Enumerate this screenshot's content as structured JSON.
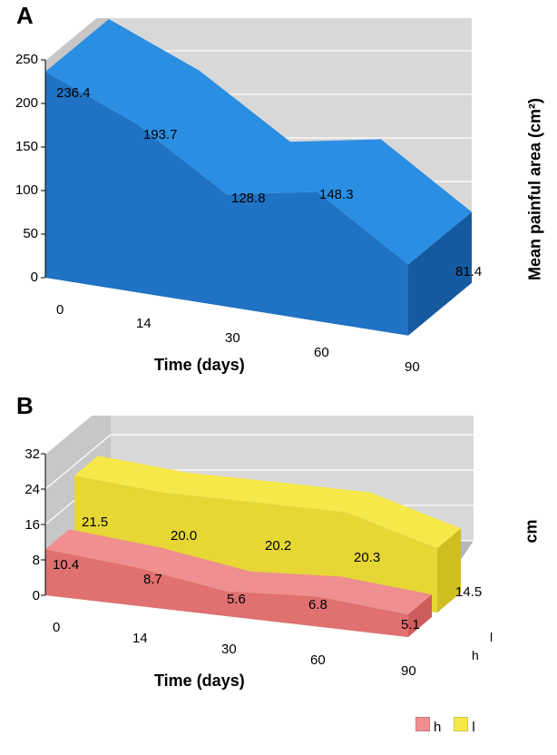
{
  "panelA": {
    "label": "A",
    "type": "area-3d",
    "x": [
      0,
      14,
      30,
      60,
      90
    ],
    "values": [
      236.4,
      193.7,
      128.8,
      148.3,
      81.4
    ],
    "value_labels": [
      "236.4",
      "193.7",
      "128.8",
      "148.3",
      "81.4"
    ],
    "x_tick_labels": [
      "0",
      "14",
      "30",
      "60",
      "90"
    ],
    "y_tick_labels": [
      "0",
      "50",
      "100",
      "150",
      "200",
      "250"
    ],
    "ylim": [
      0,
      250
    ],
    "x_label": "Time (days)",
    "y_label_right": "Mean painful area (cm²)",
    "colors": {
      "area_top": "#2a8fe3",
      "area_front": "#1f72c4",
      "area_side_dark": "#155a9e",
      "wall_back": "#d8d8d8",
      "wall_side": "#c7c7c7",
      "floor": "#b6b6b6",
      "grid": "#ffffff",
      "text": "#000000"
    },
    "font": {
      "family": "Arial",
      "tick_pt": 15,
      "label_pt": 18,
      "panel_pt": 26,
      "data_pt": 15
    }
  },
  "panelB": {
    "label": "B",
    "type": "area-3d-stacked-depth",
    "x": [
      0,
      14,
      30,
      60,
      90
    ],
    "x_tick_labels": [
      "0",
      "14",
      "30",
      "60",
      "90"
    ],
    "y_tick_labels": [
      "0",
      "8",
      "16",
      "24",
      "32"
    ],
    "ylim": [
      0,
      32
    ],
    "x_label": "Time (days)",
    "y_label_right": "cm",
    "series": [
      {
        "name": "l",
        "values": [
          21.5,
          20.0,
          20.2,
          20.3,
          14.5
        ],
        "value_labels": [
          "21.5",
          "20.0",
          "20.2",
          "20.3",
          "14.5"
        ],
        "color_top": "#f7e84a",
        "color_front": "#e6d735",
        "color_side": "#cfbe20"
      },
      {
        "name": "h",
        "values": [
          10.4,
          8.7,
          5.6,
          6.8,
          5.1
        ],
        "value_labels": [
          "10.4",
          "8.7",
          "5.6",
          "6.8",
          "5.1"
        ],
        "color_top": "#ef8f8f",
        "color_front": "#e17070",
        "color_side": "#cf5c5c"
      }
    ],
    "depth_axis_labels": [
      "l",
      "h"
    ],
    "legend": [
      {
        "name": "h",
        "color": "#ef8f8f"
      },
      {
        "name": "l",
        "color": "#f7e84a"
      }
    ],
    "colors": {
      "wall_back": "#d8d8d8",
      "wall_side": "#c7c7c7",
      "floor": "#b6b6b6",
      "grid": "#ffffff",
      "text": "#000000"
    },
    "font": {
      "family": "Arial",
      "tick_pt": 15,
      "label_pt": 18,
      "panel_pt": 26,
      "data_pt": 15
    }
  }
}
